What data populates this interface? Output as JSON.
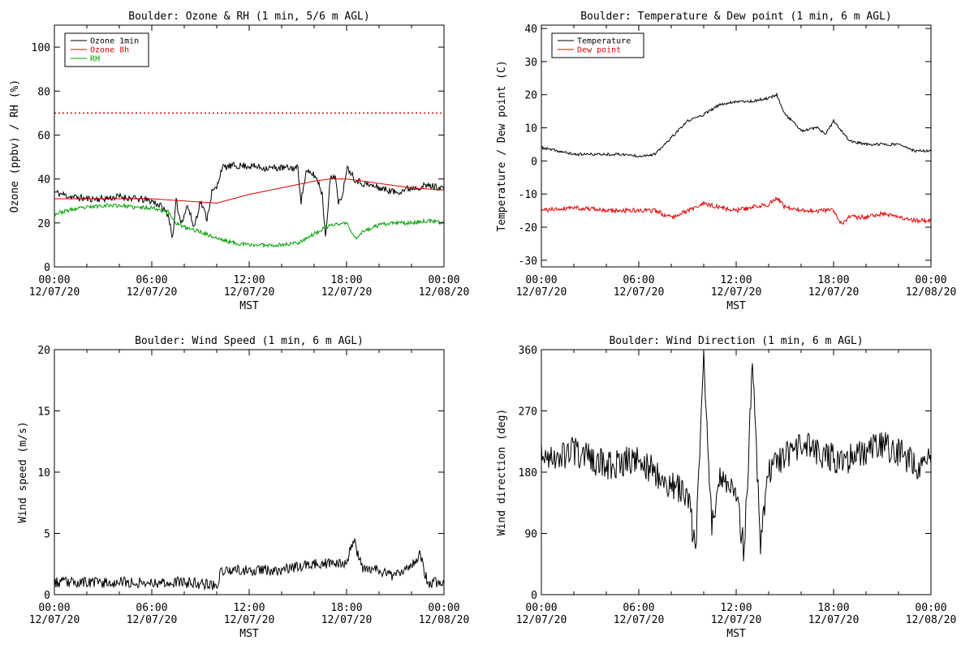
{
  "chart_data": [
    {
      "type": "line",
      "title": "Boulder: Ozone & RH (1 min, 5/6 m AGL)",
      "xlabel": "MST",
      "ylabel": "Ozone (ppbv) / RH (%)",
      "xlim": [
        0,
        24
      ],
      "ylim": [
        0,
        110
      ],
      "yticks": [
        0,
        20,
        40,
        60,
        80,
        100
      ],
      "xticks": [
        {
          "top": "00:00",
          "bottom": "12/07/20"
        },
        {
          "top": "06:00",
          "bottom": "12/07/20"
        },
        {
          "top": "12:00",
          "bottom": "12/07/20"
        },
        {
          "top": "18:00",
          "bottom": "12/07/20"
        },
        {
          "top": "00:00",
          "bottom": "12/08/20"
        }
      ],
      "legend": {
        "placement": "top-left"
      },
      "reference_line": {
        "y": 70,
        "color": "#e00000",
        "style": "dotted"
      },
      "series": [
        {
          "name": "Ozone 1min",
          "color": "#000000",
          "noise": 1.6,
          "seed": 11,
          "x": [
            0,
            1,
            2,
            3,
            4,
            5,
            6,
            6.5,
            7,
            7.3,
            7.5,
            7.8,
            8.2,
            8.6,
            9,
            9.4,
            9.7,
            10,
            10.3,
            11,
            12,
            13,
            14,
            15,
            15.2,
            15.5,
            16,
            16.3,
            16.5,
            16.7,
            17,
            17.3,
            17.5,
            17.8,
            18,
            18.2,
            18.5,
            19,
            20,
            21,
            22,
            23,
            24
          ],
          "y": [
            34,
            32,
            31,
            31,
            32,
            31,
            30,
            28,
            24,
            13,
            30,
            20,
            28,
            18,
            30,
            22,
            34,
            36,
            45,
            46,
            46,
            45,
            45,
            45,
            30,
            43,
            42,
            38,
            33,
            14,
            40,
            42,
            28,
            35,
            45,
            44,
            40,
            38,
            36,
            34,
            36,
            37,
            36
          ]
        },
        {
          "name": "Ozone 8h",
          "color": "#e00000",
          "noise": 0,
          "seed": 1,
          "x": [
            0,
            3,
            6,
            8,
            10,
            12,
            14,
            16,
            17,
            18,
            19,
            20,
            22,
            24
          ],
          "y": [
            31,
            31,
            31,
            30,
            29,
            33,
            36,
            39,
            40,
            40,
            39,
            38,
            36,
            35
          ]
        },
        {
          "name": "RH",
          "color": "#00a000",
          "noise": 0.9,
          "seed": 23,
          "x": [
            0,
            1,
            2,
            3,
            4,
            5,
            6,
            7,
            7.5,
            8,
            9,
            10,
            11,
            12,
            13,
            14,
            15,
            16,
            17,
            18,
            18.5,
            19,
            20,
            21,
            22,
            23,
            24
          ],
          "y": [
            24,
            26,
            27,
            28,
            28,
            27,
            27,
            25,
            20,
            18,
            16,
            13,
            11,
            10,
            10,
            10,
            11,
            15,
            19,
            20,
            13,
            16,
            19,
            20,
            20,
            21,
            20
          ]
        }
      ]
    },
    {
      "type": "line",
      "title": "Boulder: Temperature & Dew point (1 min, 6 m AGL)",
      "xlabel": "MST",
      "ylabel": "Temperature / Dew point (C)",
      "xlim": [
        0,
        24
      ],
      "ylim": [
        -32,
        41
      ],
      "yticks": [
        -30,
        -20,
        -10,
        0,
        10,
        20,
        30,
        40
      ],
      "xticks": [
        {
          "top": "00:00",
          "bottom": "12/07/20"
        },
        {
          "top": "06:00",
          "bottom": "12/07/20"
        },
        {
          "top": "12:00",
          "bottom": "12/07/20"
        },
        {
          "top": "18:00",
          "bottom": "12/07/20"
        },
        {
          "top": "00:00",
          "bottom": "12/08/20"
        }
      ],
      "legend": {
        "placement": "top-left"
      },
      "series": [
        {
          "name": "Temperature",
          "color": "#000000",
          "noise": 0.4,
          "seed": 37,
          "x": [
            0,
            1,
            2,
            3,
            4,
            5,
            6,
            7,
            8,
            9,
            10,
            11,
            12,
            13,
            14,
            14.5,
            15,
            15.5,
            16,
            17,
            17.5,
            18,
            18.5,
            19,
            20,
            21,
            22,
            23,
            24
          ],
          "y": [
            4,
            3,
            2,
            2,
            2,
            2,
            1.5,
            2,
            7,
            12,
            14,
            17,
            18,
            18,
            19,
            20,
            14,
            12,
            9,
            10,
            8,
            12,
            9,
            6,
            5,
            5,
            5,
            3,
            3
          ]
        },
        {
          "name": "Dew point",
          "color": "#e00000",
          "noise": 0.7,
          "seed": 41,
          "x": [
            0,
            2,
            4,
            6,
            7,
            8,
            9,
            10,
            11,
            12,
            13,
            14,
            14.5,
            15,
            16,
            17,
            18,
            18.5,
            19,
            20,
            21,
            22,
            23,
            24
          ],
          "y": [
            -15,
            -14,
            -15,
            -15,
            -15,
            -17,
            -15,
            -13,
            -14,
            -15,
            -14,
            -13,
            -11,
            -14,
            -15,
            -15,
            -15,
            -19,
            -17,
            -17,
            -16,
            -17,
            -18,
            -18
          ]
        }
      ]
    },
    {
      "type": "line",
      "title": "Boulder: Wind Speed (1 min, 6 m AGL)",
      "xlabel": "MST",
      "ylabel": "Wind speed (m/s)",
      "xlim": [
        0,
        24
      ],
      "ylim": [
        0,
        20
      ],
      "yticks": [
        0,
        5,
        10,
        15,
        20
      ],
      "xticks": [
        {
          "top": "00:00",
          "bottom": "12/07/20"
        },
        {
          "top": "06:00",
          "bottom": "12/07/20"
        },
        {
          "top": "12:00",
          "bottom": "12/07/20"
        },
        {
          "top": "18:00",
          "bottom": "12/07/20"
        },
        {
          "top": "00:00",
          "bottom": "12/08/20"
        }
      ],
      "series": [
        {
          "color": "#000000",
          "noise": 0.45,
          "seed": 53,
          "min": 0,
          "x": [
            0,
            2,
            4,
            6,
            8,
            10,
            10.3,
            12,
            14,
            16,
            18,
            18.4,
            19,
            20,
            21,
            22,
            22.5,
            23,
            24
          ],
          "y": [
            1,
            1,
            1,
            1,
            1,
            0.8,
            2,
            2,
            2,
            2.5,
            2.5,
            4.5,
            2.2,
            2,
            1.5,
            2.5,
            3.3,
            1,
            1
          ]
        }
      ]
    },
    {
      "type": "line",
      "title": "Boulder: Wind Direction (1 min, 6 m AGL)",
      "xlabel": "MST",
      "ylabel": "Wind direction (deg)",
      "xlim": [
        0,
        24
      ],
      "ylim": [
        0,
        360
      ],
      "yticks": [
        0,
        90,
        180,
        270,
        360
      ],
      "xticks": [
        {
          "top": "00:00",
          "bottom": "12/07/20"
        },
        {
          "top": "06:00",
          "bottom": "12/07/20"
        },
        {
          "top": "12:00",
          "bottom": "12/07/20"
        },
        {
          "top": "18:00",
          "bottom": "12/07/20"
        },
        {
          "top": "00:00",
          "bottom": "12/08/20"
        }
      ],
      "series": [
        {
          "color": "#000000",
          "noise": 22,
          "seed": 67,
          "min": 0,
          "max": 360,
          "x": [
            0,
            2,
            4,
            6,
            7,
            8,
            9,
            9.5,
            10,
            10.5,
            11,
            12,
            12.5,
            13,
            13.5,
            14,
            15,
            16,
            17,
            18,
            19,
            20,
            21,
            22,
            23,
            24
          ],
          "y": [
            200,
            210,
            190,
            200,
            180,
            160,
            150,
            60,
            350,
            100,
            180,
            150,
            60,
            340,
            80,
            180,
            200,
            220,
            210,
            200,
            200,
            210,
            220,
            210,
            190,
            200
          ]
        }
      ]
    }
  ]
}
